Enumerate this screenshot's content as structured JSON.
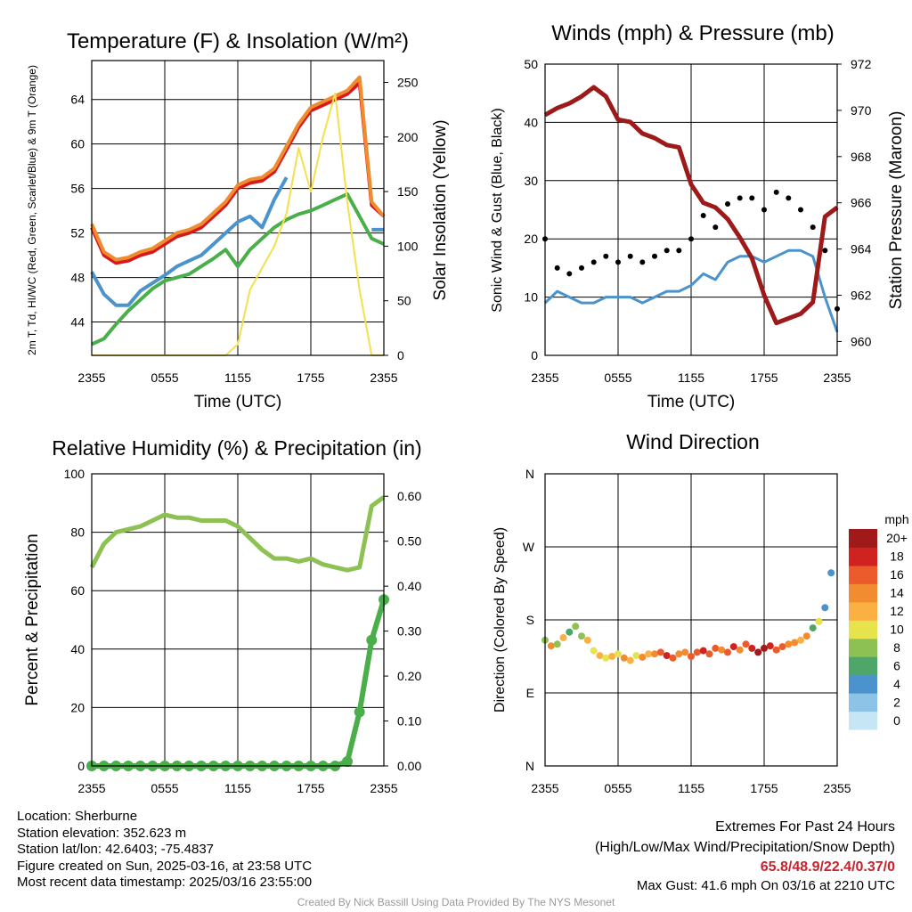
{
  "chart_data": [
    {
      "id": "temp",
      "type": "line",
      "title": "Temperature (F) & Insolation (W/m²)",
      "xlabel": "Time (UTC)",
      "ylabel_left": "2m T, Td, HI/WC (Red, Green, Scarlet/Blue) & 9m T (Orange)",
      "ylabel_right": "Solar Insolation (Yellow)",
      "xticks": [
        "2355",
        "0555",
        "1155",
        "1755",
        "2355"
      ],
      "yticks_left": [
        44,
        48,
        52,
        56,
        60,
        64
      ],
      "ylim_left": [
        41,
        67.5
      ],
      "yticks_right": [
        0,
        50,
        100,
        150,
        200,
        250
      ],
      "ylim_right": [
        0,
        270
      ],
      "grid": true,
      "x_hours": [
        0,
        1,
        2,
        3,
        4,
        5,
        6,
        7,
        8,
        9,
        10,
        11,
        12,
        13,
        14,
        15,
        16,
        17,
        18,
        19,
        20,
        21,
        22,
        23,
        24
      ],
      "series": [
        {
          "color": "#d7191c",
          "axis": "left",
          "values": [
            52.5,
            50.0,
            49.3,
            49.5,
            50.0,
            50.3,
            51.0,
            51.7,
            52.0,
            52.5,
            53.5,
            54.5,
            56.0,
            56.5,
            56.7,
            57.5,
            59.5,
            61.5,
            63.0,
            63.5,
            64.0,
            64.5,
            65.5,
            54.5,
            53.5
          ]
        },
        {
          "color": "#f08c30",
          "axis": "left",
          "values": [
            52.8,
            50.3,
            49.6,
            49.8,
            50.3,
            50.6,
            51.3,
            52.0,
            52.3,
            52.8,
            53.8,
            54.8,
            56.3,
            56.8,
            57.0,
            57.8,
            59.8,
            61.8,
            63.3,
            63.8,
            64.3,
            64.8,
            66.0,
            54.8,
            53.5
          ]
        },
        {
          "color": "#4b93cc",
          "axis": "left",
          "values": [
            48.5,
            46.5,
            45.5,
            45.5,
            46.8,
            47.5,
            48.2,
            49.0,
            49.5,
            50.0,
            51.0,
            52.0,
            53.0,
            53.5,
            52.5,
            55.0,
            57.0,
            null,
            null,
            null,
            null,
            null,
            null,
            52.3,
            52.3
          ]
        },
        {
          "color": "#4aae4a",
          "axis": "left",
          "values": [
            42.0,
            42.5,
            43.8,
            45.0,
            46.0,
            47.0,
            47.7,
            48.0,
            48.3,
            49.0,
            49.7,
            50.5,
            49.0,
            50.5,
            51.5,
            52.5,
            53.2,
            53.7,
            54.0,
            54.5,
            55.0,
            55.5,
            53.5,
            51.5,
            51.0
          ]
        },
        {
          "color": "#f5e04c",
          "axis": "right",
          "values": [
            0,
            0,
            0,
            0,
            0,
            0,
            0,
            0,
            0,
            0,
            0,
            0,
            10,
            60,
            80,
            100,
            130,
            190,
            150,
            200,
            240,
            140,
            60,
            0,
            0
          ]
        }
      ]
    },
    {
      "id": "wind",
      "type": "line",
      "title": "Winds (mph) & Pressure (mb)",
      "xlabel": "Time (UTC)",
      "ylabel_left": "Sonic Wind & Gust (Blue, Black)",
      "ylabel_right": "Station Pressure (Maroon)",
      "xticks": [
        "2355",
        "0555",
        "1155",
        "1755",
        "2355"
      ],
      "yticks_left": [
        0,
        10,
        20,
        30,
        40,
        50
      ],
      "ylim_left": [
        0,
        50
      ],
      "yticks_right": [
        960,
        962,
        964,
        966,
        968,
        970,
        972
      ],
      "ylim_right": [
        959.4,
        972
      ],
      "grid": true,
      "x_hours": [
        0,
        1,
        2,
        3,
        4,
        5,
        6,
        7,
        8,
        9,
        10,
        11,
        12,
        13,
        14,
        15,
        16,
        17,
        18,
        19,
        20,
        21,
        22,
        23,
        24
      ],
      "series": [
        {
          "name": "Sonic Wind",
          "color": "#4b93cc",
          "axis": "left",
          "values": [
            9,
            11,
            10,
            9,
            9,
            10,
            10,
            10,
            9,
            10,
            11,
            11,
            12,
            14,
            13,
            16,
            17,
            17,
            16,
            17,
            18,
            18,
            17,
            10,
            4
          ]
        },
        {
          "name": "Gust",
          "color": "#000000",
          "axis": "left",
          "style": "dots",
          "values": [
            20,
            15,
            14,
            15,
            16,
            17,
            16,
            17,
            16,
            17,
            18,
            18,
            20,
            24,
            22,
            26,
            27,
            27,
            25,
            28,
            27,
            25,
            22,
            18,
            8
          ]
        },
        {
          "name": "Pressure",
          "color": "#9c1a1a",
          "axis": "right",
          "values": [
            969.8,
            970.1,
            970.3,
            970.6,
            971.0,
            970.6,
            969.6,
            969.5,
            969.0,
            968.8,
            968.5,
            968.4,
            966.8,
            966.0,
            965.8,
            965.3,
            964.5,
            963.6,
            962.0,
            960.8,
            961.0,
            961.2,
            961.7,
            965.4,
            965.8
          ]
        }
      ]
    },
    {
      "id": "rh",
      "type": "line",
      "title": "Relative Humidity (%) & Precipitation (in)",
      "ylabel_left": "Percent & Precipitation",
      "xticks": [
        "2355",
        "0555",
        "1155",
        "1755",
        "2355"
      ],
      "yticks_left": [
        0,
        20,
        40,
        60,
        80,
        100
      ],
      "ylim_left": [
        0,
        100
      ],
      "yticks_right": [
        "0.00",
        "0.10",
        "0.20",
        "0.30",
        "0.40",
        "0.50",
        "0.60"
      ],
      "ylim_right": [
        0,
        0.65
      ],
      "grid": true,
      "x_hours": [
        0,
        1,
        2,
        3,
        4,
        5,
        6,
        7,
        8,
        9,
        10,
        11,
        12,
        13,
        14,
        15,
        16,
        17,
        18,
        19,
        20,
        21,
        22,
        23,
        24
      ],
      "series": [
        {
          "name": "RH",
          "color": "#8dc153",
          "axis": "left",
          "values": [
            68,
            76,
            80,
            81,
            82,
            84,
            86,
            85,
            85,
            84,
            84,
            84,
            82,
            78,
            74,
            71,
            71,
            70,
            71,
            69,
            68,
            67,
            68,
            89,
            92
          ]
        },
        {
          "name": "Precipitation",
          "color": "#4aae4a",
          "axis": "right",
          "style": "dots",
          "values": [
            0,
            0,
            0,
            0,
            0,
            0,
            0,
            0,
            0,
            0,
            0,
            0,
            0,
            0,
            0,
            0,
            0,
            0,
            0,
            0,
            0,
            0.01,
            0.12,
            0.28,
            0.37
          ]
        }
      ]
    },
    {
      "id": "dir",
      "type": "scatter",
      "title": "Wind Direction",
      "ylabel_left": "Direction (Colored By Speed)",
      "xticks": [
        "2355",
        "0555",
        "1155",
        "1755",
        "2355"
      ],
      "yticks_left": [
        "N",
        "E",
        "S",
        "W",
        "N"
      ],
      "ylim_left": [
        0,
        360
      ],
      "grid": true,
      "colorbar_title": "mph",
      "colorbar_labels": [
        "0",
        "2",
        "4",
        "6",
        "8",
        "10",
        "12",
        "14",
        "16",
        "18",
        "20+"
      ],
      "colorbar_colors": [
        "#c6e6f6",
        "#8cc3e7",
        "#4b93cc",
        "#4ea768",
        "#8dc153",
        "#e6e34d",
        "#fbb044",
        "#f28c30",
        "#ec5b2b",
        "#d0221f",
        "#a01a1a"
      ],
      "points_hour": [
        0,
        0.5,
        1,
        1.5,
        2,
        2.5,
        3,
        3.5,
        4,
        4.5,
        5,
        5.5,
        6,
        6.5,
        7,
        7.5,
        8,
        8.5,
        9,
        9.5,
        10,
        10.5,
        11,
        11.5,
        12,
        12.5,
        13,
        13.5,
        14,
        14.5,
        15,
        15.5,
        16,
        16.5,
        17,
        17.5,
        18,
        18.5,
        19,
        19.5,
        20,
        20.5,
        21,
        21.5,
        22,
        22.5,
        23,
        23.5
      ],
      "points_dir": [
        155,
        148,
        150,
        158,
        165,
        172,
        160,
        155,
        142,
        136,
        133,
        135,
        138,
        133,
        130,
        136,
        134,
        138,
        138,
        140,
        136,
        133,
        138,
        140,
        135,
        140,
        142,
        138,
        145,
        143,
        140,
        147,
        143,
        150,
        145,
        140,
        145,
        148,
        143,
        147,
        150,
        152,
        155,
        160,
        170,
        178,
        195,
        238
      ],
      "points_speed": [
        8,
        13,
        8,
        12,
        6,
        8,
        7,
        11,
        10,
        12,
        10,
        11,
        9,
        13,
        12,
        10,
        13,
        12,
        14,
        16,
        18,
        16,
        14,
        13,
        15,
        16,
        17,
        16,
        15,
        14,
        16,
        17,
        14,
        16,
        18,
        19,
        20,
        18,
        16,
        15,
        14,
        13,
        12,
        14,
        6,
        9,
        4,
        3
      ]
    }
  ],
  "info": {
    "location": "Location: Sherburne",
    "elevation": "Station elevation: 352.623 m",
    "latlon": "Station lat/lon: 42.6403; -75.4837",
    "created": "Figure created on Sun, 2025-03-16, at 23:58 UTC",
    "recent": "Most recent data timestamp: 2025/03/16 23:55:00"
  },
  "extremes": {
    "title": "Extremes For Past 24 Hours",
    "subtitle": "(High/Low/Max Wind/Precipitation/Snow Depth)",
    "values": "65.8/48.9/22.4/0.37/0",
    "gust": "Max Gust: 41.6 mph On 03/16 at 2210 UTC"
  },
  "credit": "Created By Nick Bassill Using Data Provided By The NYS Mesonet"
}
